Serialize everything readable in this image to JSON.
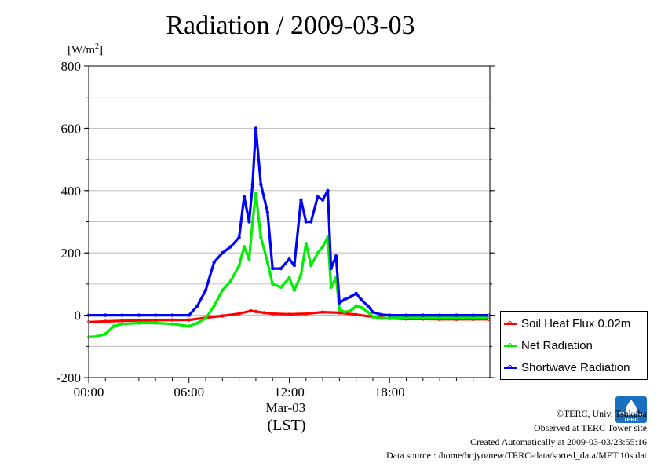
{
  "header": {
    "title": "Radiation / 2009-03-03",
    "unit_label": "[W/m",
    "unit_exp": "2",
    "unit_close": "]"
  },
  "chart_data": {
    "type": "line",
    "title": "Radiation / 2009-03-03",
    "ylabel": "[W/m2]",
    "xlabel": "(LST)",
    "date_label": "Mar-03",
    "ylim": [
      -200,
      800
    ],
    "xlim_hours": [
      0,
      24
    ],
    "yticks": [
      -200,
      0,
      200,
      400,
      600,
      800
    ],
    "xticks": [
      "00:00",
      "06:00",
      "12:00",
      "18:00"
    ],
    "grid": true,
    "legend_position": "right-bottom",
    "series": [
      {
        "name": "Soil Heat Flux 0.02m",
        "color": "#ff0000",
        "x": [
          0,
          1,
          2,
          3,
          4,
          5,
          6,
          7,
          8,
          9,
          9.7,
          10,
          10.5,
          11,
          12,
          13,
          14,
          15,
          16,
          17,
          18,
          19,
          20,
          21,
          22,
          23,
          23.9
        ],
        "y": [
          -22,
          -20,
          -18,
          -17,
          -16,
          -15,
          -15,
          -8,
          -2,
          5,
          14,
          12,
          8,
          5,
          3,
          5,
          10,
          8,
          2,
          -5,
          -10,
          -12,
          -12,
          -13,
          -13,
          -13,
          -13
        ]
      },
      {
        "name": "Net Radiation",
        "color": "#00ee00",
        "x": [
          0,
          0.5,
          1,
          1.5,
          2,
          3,
          4,
          5,
          6,
          6.5,
          7,
          7.5,
          8,
          8.5,
          9,
          9.3,
          9.6,
          9.8,
          10,
          10.3,
          10.7,
          11,
          11.5,
          12,
          12.3,
          12.7,
          13,
          13.3,
          13.7,
          14,
          14.3,
          14.5,
          14.8,
          15,
          15.3,
          15.7,
          16,
          16.3,
          16.7,
          17,
          17.5,
          18,
          19,
          20,
          21,
          22,
          23,
          23.9
        ],
        "y": [
          -70,
          -68,
          -60,
          -35,
          -28,
          -25,
          -25,
          -28,
          -35,
          -25,
          -10,
          30,
          80,
          110,
          160,
          220,
          180,
          300,
          390,
          250,
          170,
          100,
          90,
          120,
          80,
          130,
          230,
          160,
          200,
          220,
          250,
          90,
          120,
          20,
          10,
          15,
          30,
          25,
          10,
          -5,
          -10,
          -8,
          -7,
          -7,
          -7,
          -7,
          -7,
          -7
        ]
      },
      {
        "name": "Shortwave Radiation",
        "color": "#0000ff",
        "x": [
          0,
          1,
          2,
          3,
          4,
          5,
          6,
          6.5,
          7,
          7.5,
          8,
          8.5,
          9,
          9.3,
          9.6,
          9.8,
          10,
          10.3,
          10.7,
          11,
          11.5,
          12,
          12.3,
          12.7,
          13,
          13.3,
          13.7,
          14,
          14.3,
          14.5,
          14.8,
          15,
          15.3,
          15.7,
          16,
          16.3,
          16.7,
          17,
          17.5,
          18,
          19,
          20,
          21,
          22,
          23,
          23.9
        ],
        "y": [
          0,
          0,
          0,
          0,
          0,
          0,
          0,
          30,
          80,
          170,
          200,
          220,
          250,
          380,
          300,
          420,
          600,
          420,
          330,
          150,
          150,
          180,
          160,
          370,
          300,
          300,
          380,
          370,
          400,
          150,
          190,
          40,
          50,
          60,
          70,
          50,
          30,
          10,
          2,
          0,
          0,
          0,
          0,
          0,
          0,
          0
        ]
      }
    ]
  },
  "footer": {
    "copyright": "©TERC, Univ. Tsukuba",
    "observed": "Observed at TERC Tower site",
    "created": "Created Automatically at 2009-03-03/23:55:16",
    "source": "Data source : /home/hojyo/new/TERC-data/sorted_data/MET.10s.dat"
  },
  "logo": {
    "text": "TERC",
    "color": "#1a6fc0"
  }
}
